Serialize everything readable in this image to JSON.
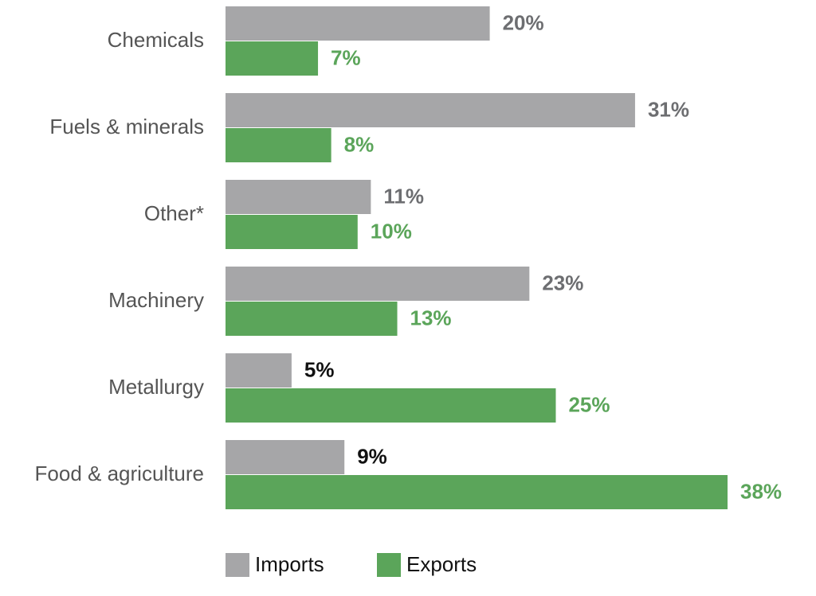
{
  "chart_data": {
    "type": "bar",
    "orientation": "horizontal",
    "categories": [
      "Chemicals",
      "Fuels & minerals",
      "Other*",
      "Machinery",
      "Metallurgy",
      "Food & agriculture"
    ],
    "series": [
      {
        "name": "Imports",
        "color": "#a6a6a8",
        "values": [
          20,
          31,
          11,
          23,
          5,
          9
        ],
        "value_labels": [
          "20%",
          "31%",
          "11%",
          "23%",
          "5%",
          "9%"
        ],
        "value_label_colors": [
          "#6d6e71",
          "#6d6e71",
          "#6d6e71",
          "#6d6e71",
          "#111111",
          "#111111"
        ]
      },
      {
        "name": "Exports",
        "color": "#5ba55a",
        "values": [
          7,
          8,
          10,
          13,
          25,
          38
        ],
        "value_labels": [
          "7%",
          "8%",
          "10%",
          "13%",
          "25%",
          "38%"
        ],
        "value_label_colors": [
          "#5ba55a",
          "#5ba55a",
          "#5ba55a",
          "#5ba55a",
          "#5ba55a",
          "#5ba55a"
        ]
      }
    ]
  }
}
